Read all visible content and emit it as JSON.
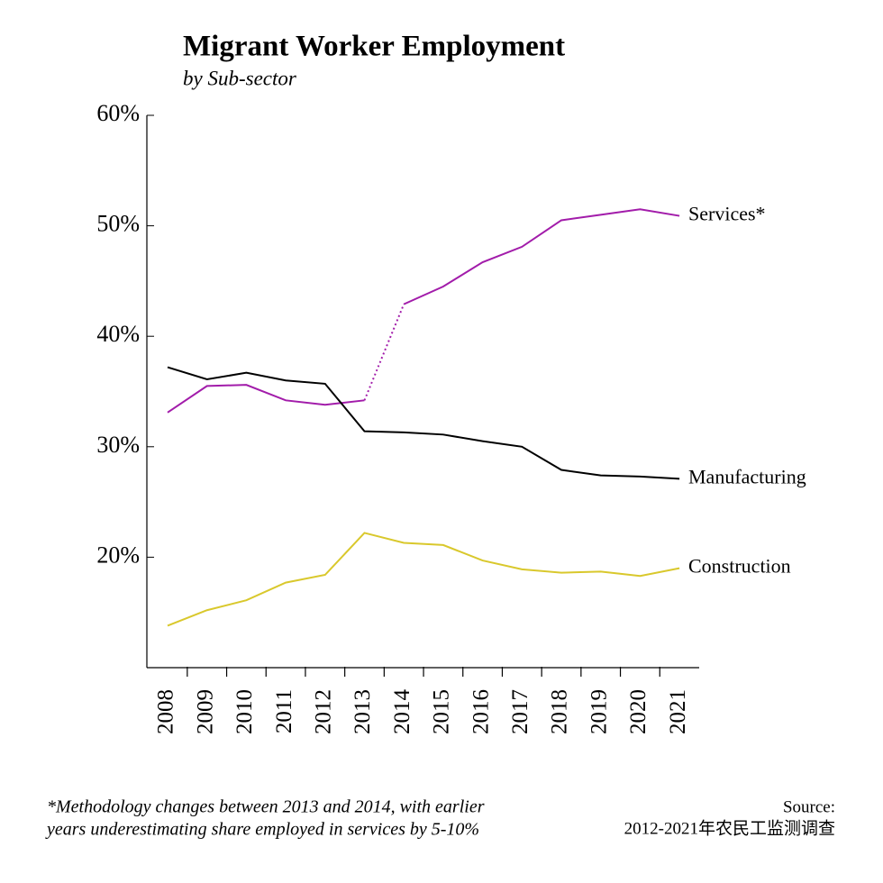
{
  "chart_data": {
    "type": "line",
    "title": "Migrant Worker Employment",
    "subtitle": "by Sub-sector",
    "categories": [
      "2008",
      "2009",
      "2010",
      "2011",
      "2012",
      "2013",
      "2014",
      "2015",
      "2016",
      "2017",
      "2018",
      "2019",
      "2020",
      "2021"
    ],
    "series": [
      {
        "name": "Services*",
        "color": "#a21caa",
        "dashed_from": "2013",
        "values": [
          33.1,
          35.5,
          35.6,
          34.2,
          33.8,
          34.2,
          42.9,
          44.5,
          46.7,
          48.1,
          50.5,
          51.0,
          51.5,
          50.9
        ]
      },
      {
        "name": "Manufacturing",
        "color": "#000000",
        "values": [
          37.2,
          36.1,
          36.7,
          36.0,
          35.7,
          31.4,
          31.3,
          31.1,
          30.5,
          30.0,
          27.9,
          27.4,
          27.3,
          27.1
        ]
      },
      {
        "name": "Construction",
        "color": "#d9c82c",
        "values": [
          13.8,
          15.2,
          16.1,
          17.7,
          18.4,
          22.2,
          21.3,
          21.1,
          19.7,
          18.9,
          18.6,
          18.7,
          18.3,
          19.0
        ]
      }
    ],
    "ylim": [
      10,
      60
    ],
    "yticks": [
      {
        "value": 20,
        "label": "20%"
      },
      {
        "value": 30,
        "label": "30%"
      },
      {
        "value": 40,
        "label": "40%"
      },
      {
        "value": 50,
        "label": "50%"
      },
      {
        "value": 60,
        "label": "60%"
      }
    ],
    "footnote": [
      "*Methodology changes between 2013 and 2014, with earlier",
      "years underestimating share employed in services by 5-10%"
    ],
    "source": [
      "Source:",
      "2012-2021年农民工监测调查"
    ]
  }
}
